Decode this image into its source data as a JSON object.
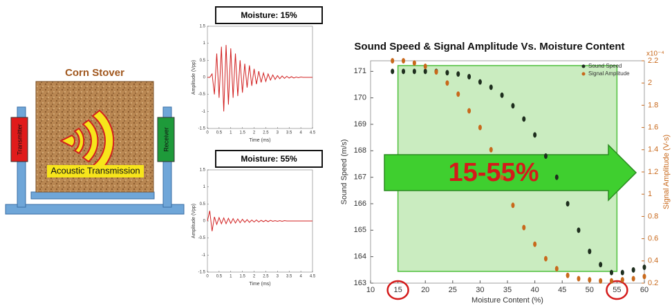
{
  "diagram": {
    "title": "Corn Stover",
    "transmitter": "Transmitter",
    "receiver": "Receiver",
    "caption": "Acoustic Transmission"
  },
  "chart_data": [
    {
      "type": "line",
      "title": "Moisture: 15%",
      "x_label": "Time (ms)",
      "y_label": "Amplitude (Vpp)",
      "color": "#d11f1f",
      "x": [
        0,
        0.1,
        0.2,
        0.3,
        0.4,
        0.5,
        0.6,
        0.7,
        0.8,
        0.9,
        1.0,
        1.1,
        1.2,
        1.3,
        1.4,
        1.5,
        1.6,
        1.7,
        1.8,
        1.9,
        2.0,
        2.1,
        2.2,
        2.3,
        2.4,
        2.5,
        2.6,
        2.7,
        2.8,
        2.9,
        3.0,
        3.1,
        3.2,
        3.3,
        3.4,
        3.5,
        3.6,
        3.7,
        3.8,
        3.9,
        4.0,
        4.1,
        4.2,
        4.3,
        4.4,
        4.5
      ],
      "values": [
        0,
        0,
        0.1,
        -0.5,
        0.7,
        -0.6,
        0.9,
        -1.0,
        0.95,
        -0.8,
        0.85,
        -0.6,
        0.7,
        -0.55,
        0.5,
        -0.45,
        0.4,
        -0.3,
        0.35,
        -0.25,
        0.25,
        -0.2,
        0.18,
        -0.15,
        0.13,
        -0.12,
        0.1,
        -0.08,
        0.07,
        -0.06,
        0.05,
        -0.04,
        0.04,
        -0.03,
        0.03,
        -0.02,
        0.02,
        -0.02,
        0.01,
        -0.01,
        0.01,
        0,
        0,
        0,
        0,
        0
      ],
      "xlim": [
        0,
        4.5
      ],
      "xticks": [
        0,
        0.5,
        1,
        1.5,
        2,
        2.5,
        3,
        3.5,
        4,
        4.5
      ],
      "ylim": [
        -1.5,
        1.5
      ],
      "yticks": [
        -1.5,
        -1,
        -0.5,
        0,
        0.5,
        1,
        1.5
      ]
    },
    {
      "type": "line",
      "title": "Moisture: 55%",
      "x_label": "Time (ms)",
      "y_label": "Amplitude (Vpp)",
      "color": "#d11f1f",
      "x": [
        0,
        0.1,
        0.2,
        0.3,
        0.4,
        0.5,
        0.6,
        0.7,
        0.8,
        0.9,
        1.0,
        1.1,
        1.2,
        1.3,
        1.4,
        1.5,
        1.6,
        1.7,
        1.8,
        1.9,
        2.0,
        2.1,
        2.2,
        2.3,
        2.4,
        2.5,
        2.6,
        2.7,
        2.8,
        2.9,
        3.0,
        3.1,
        3.2,
        3.3,
        3.4,
        3.5,
        3.6,
        3.7,
        3.8,
        3.9,
        4.0,
        4.1,
        4.2,
        4.3,
        4.4,
        4.5
      ],
      "values": [
        0,
        0.3,
        -0.3,
        0.12,
        -0.1,
        0.1,
        -0.08,
        0.09,
        -0.08,
        0.08,
        -0.07,
        0.07,
        -0.06,
        0.06,
        -0.05,
        0.05,
        -0.04,
        0.04,
        -0.04,
        0.03,
        -0.03,
        0.03,
        -0.03,
        0.02,
        -0.02,
        0.02,
        -0.02,
        0.02,
        -0.01,
        0.01,
        -0.01,
        0.01,
        -0.01,
        0.01,
        0,
        0,
        0,
        0,
        0,
        0,
        0,
        0,
        0,
        0,
        0,
        0
      ],
      "xlim": [
        0,
        4.5
      ],
      "xticks": [
        0,
        0.5,
        1,
        1.5,
        2,
        2.5,
        3,
        3.5,
        4,
        4.5
      ],
      "ylim": [
        -1.5,
        1.5
      ],
      "yticks": [
        -1.5,
        -1,
        -0.5,
        0,
        0.5,
        1,
        1.5
      ]
    },
    {
      "type": "scatter",
      "title": "Sound Speed & Signal Amplitude Vs. Moisture Content",
      "x_label": "Moisture Content (%)",
      "y_label": "Sound Speed (m/s)",
      "y2_label": "Signal Amplitude (V-s)",
      "y2_multiplier": "x10⁻⁴",
      "legend": "upper right",
      "x": [
        14,
        16,
        18,
        20,
        22,
        24,
        26,
        28,
        30,
        32,
        34,
        36,
        38,
        40,
        42,
        44,
        46,
        48,
        50,
        52,
        54,
        56,
        58,
        60
      ],
      "series": [
        {
          "name": "Sound Speed",
          "color": "#1e2e1e",
          "values": [
            171,
            171,
            171,
            171,
            171,
            170.95,
            170.9,
            170.8,
            170.6,
            170.4,
            170.1,
            169.7,
            169.2,
            168.6,
            167.8,
            167.0,
            166.0,
            165.0,
            164.2,
            163.7,
            163.4,
            163.4,
            163.5,
            163.6
          ]
        },
        {
          "name": "Signal Amplitude",
          "color": "#c8691c",
          "axis": "y2",
          "values": [
            2.2,
            2.2,
            2.18,
            2.15,
            2.1,
            2.0,
            1.9,
            1.75,
            1.6,
            1.4,
            1.15,
            0.9,
            0.7,
            0.55,
            0.42,
            0.33,
            0.27,
            0.24,
            0.23,
            0.22,
            0.22,
            0.23,
            0.24,
            0.26
          ]
        }
      ],
      "xlim": [
        10,
        60
      ],
      "xticks": [
        10,
        15,
        20,
        25,
        30,
        35,
        40,
        45,
        50,
        55,
        60
      ],
      "ylim": [
        163,
        171.4
      ],
      "yticks": [
        163,
        164,
        165,
        166,
        167,
        168,
        169,
        170,
        171
      ],
      "y2lim": [
        0.2,
        2.2
      ],
      "y2ticks": [
        0.2,
        0.4,
        0.6,
        0.8,
        1,
        1.2,
        1.4,
        1.6,
        1.8,
        2,
        2.2
      ],
      "highlight": {
        "x": [
          15,
          55
        ],
        "label": "15-55%"
      },
      "circled_xticks": [
        15,
        55
      ]
    }
  ]
}
